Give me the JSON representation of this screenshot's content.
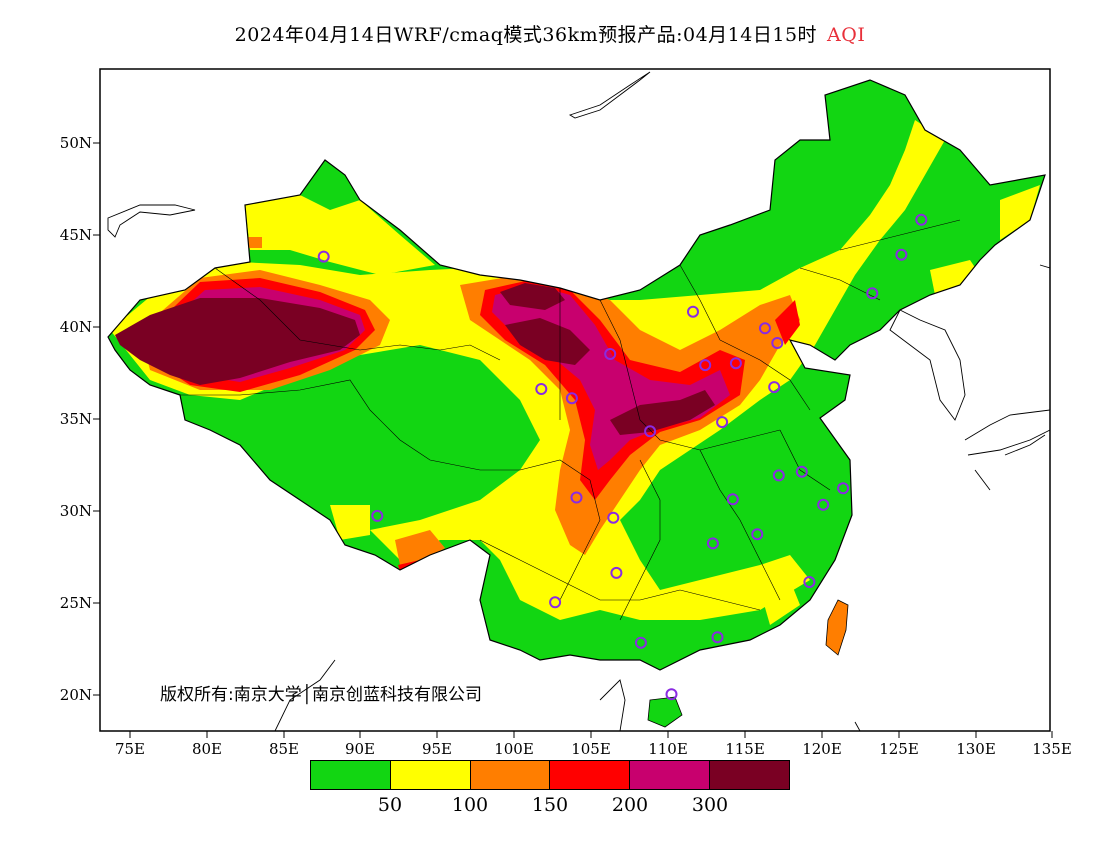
{
  "title": {
    "main": "2024年04月14日WRF/cmaq模式36km预报产品:04月14日15时",
    "variable": "AQI"
  },
  "axes": {
    "lat_labels": [
      "50N",
      "45N",
      "40N",
      "35N",
      "30N",
      "25N",
      "20N"
    ],
    "lon_labels": [
      "75E",
      "80E",
      "85E",
      "90E",
      "95E",
      "100E",
      "105E",
      "110E",
      "115E",
      "120E",
      "125E",
      "130E",
      "135E"
    ],
    "lat_range": [
      18,
      54
    ],
    "lon_range": [
      73,
      135
    ]
  },
  "copyright": "版权所有:南京大学│南京创蓝科技有限公司",
  "legend": {
    "colors": [
      "#12d612",
      "#ffff00",
      "#ff7e00",
      "#ff0000",
      "#c8006e",
      "#7a0023"
    ],
    "labels": [
      "50",
      "100",
      "150",
      "200",
      "300"
    ],
    "categories": [
      "0-50",
      "50-100",
      "100-150",
      "150-200",
      "200-300",
      ">300"
    ]
  },
  "stations_color": "#8a2be2",
  "chart_data": {
    "type": "heatmap",
    "title": "2024年04月14日WRF/cmaq模式36km预报产品:04月14日15时 AQI",
    "x_axis": "longitude",
    "y_axis": "latitude",
    "xlim": [
      73,
      135
    ],
    "ylim": [
      18,
      54
    ],
    "levels": [
      50,
      100,
      150,
      200,
      300
    ],
    "colors": [
      "#12d612",
      "#ffff00",
      "#ff7e00",
      "#ff0000",
      "#c8006e",
      "#7a0023"
    ],
    "high_regions": [
      {
        "region": "Tarim Basin",
        "aqi_range": ">300"
      },
      {
        "region": "Alxa / Inner Mongolia west",
        "aqi_range": ">300"
      },
      {
        "region": "Guanzhong / Henan",
        "aqi_range": ">300"
      },
      {
        "region": "Sichuan Basin west",
        "aqi_range": "150-300"
      },
      {
        "region": "North China Plain",
        "aqi_range": "100-200"
      }
    ],
    "stations": [
      {
        "lon": 87.6,
        "lat": 43.8
      },
      {
        "lon": 91.1,
        "lat": 29.7
      },
      {
        "lon": 101.8,
        "lat": 36.6
      },
      {
        "lon": 103.8,
        "lat": 36.1
      },
      {
        "lon": 106.3,
        "lat": 38.5
      },
      {
        "lon": 111.7,
        "lat": 40.8
      },
      {
        "lon": 112.5,
        "lat": 37.9
      },
      {
        "lon": 114.5,
        "lat": 38.0
      },
      {
        "lon": 116.4,
        "lat": 39.9
      },
      {
        "lon": 117.2,
        "lat": 39.1
      },
      {
        "lon": 117.0,
        "lat": 36.7
      },
      {
        "lon": 113.6,
        "lat": 34.8
      },
      {
        "lon": 108.9,
        "lat": 34.3
      },
      {
        "lon": 104.1,
        "lat": 30.7
      },
      {
        "lon": 106.5,
        "lat": 29.6
      },
      {
        "lon": 114.3,
        "lat": 30.6
      },
      {
        "lon": 117.3,
        "lat": 31.9
      },
      {
        "lon": 118.8,
        "lat": 32.1
      },
      {
        "lon": 121.5,
        "lat": 31.2
      },
      {
        "lon": 120.2,
        "lat": 30.3
      },
      {
        "lon": 115.9,
        "lat": 28.7
      },
      {
        "lon": 113.0,
        "lat": 28.2
      },
      {
        "lon": 106.7,
        "lat": 26.6
      },
      {
        "lon": 102.7,
        "lat": 25.0
      },
      {
        "lon": 108.3,
        "lat": 22.8
      },
      {
        "lon": 113.3,
        "lat": 23.1
      },
      {
        "lon": 119.3,
        "lat": 26.1
      },
      {
        "lon": 110.3,
        "lat": 20.0
      },
      {
        "lon": 123.4,
        "lat": 41.8
      },
      {
        "lon": 125.3,
        "lat": 43.9
      },
      {
        "lon": 126.6,
        "lat": 45.8
      }
    ]
  }
}
